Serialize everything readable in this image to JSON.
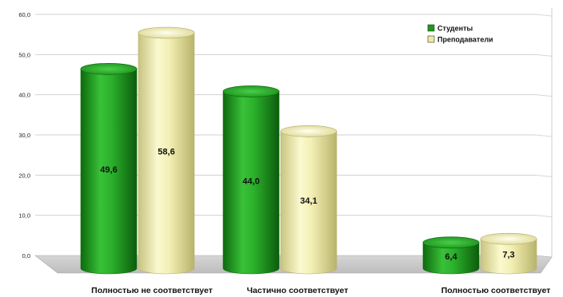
{
  "chart_data": {
    "type": "bar",
    "categories": [
      "Полностью не соответствует",
      "Частично соответствует",
      "Полностью  соответствует"
    ],
    "series": [
      {
        "name": "Студенты",
        "values": [
          49.6,
          44.0,
          6.4
        ],
        "labels": [
          "49,6",
          "44,0",
          "6,4"
        ],
        "color": "#1a9a1a"
      },
      {
        "name": "Преподаватели",
        "values": [
          58.6,
          34.1,
          7.3
        ],
        "labels": [
          "58,6",
          "34,1",
          "7,3"
        ],
        "color": "#eeeaa0"
      }
    ],
    "y_ticks": [
      "0,0",
      "10,0",
      "20,0",
      "30,0",
      "40,0",
      "50,0",
      "60,0"
    ],
    "y_tick_values": [
      0,
      10,
      20,
      30,
      40,
      50,
      60
    ],
    "ylim": [
      0,
      60
    ],
    "title": "",
    "xlabel": "",
    "ylabel": "",
    "legend_position": "top-right",
    "grid": true
  }
}
